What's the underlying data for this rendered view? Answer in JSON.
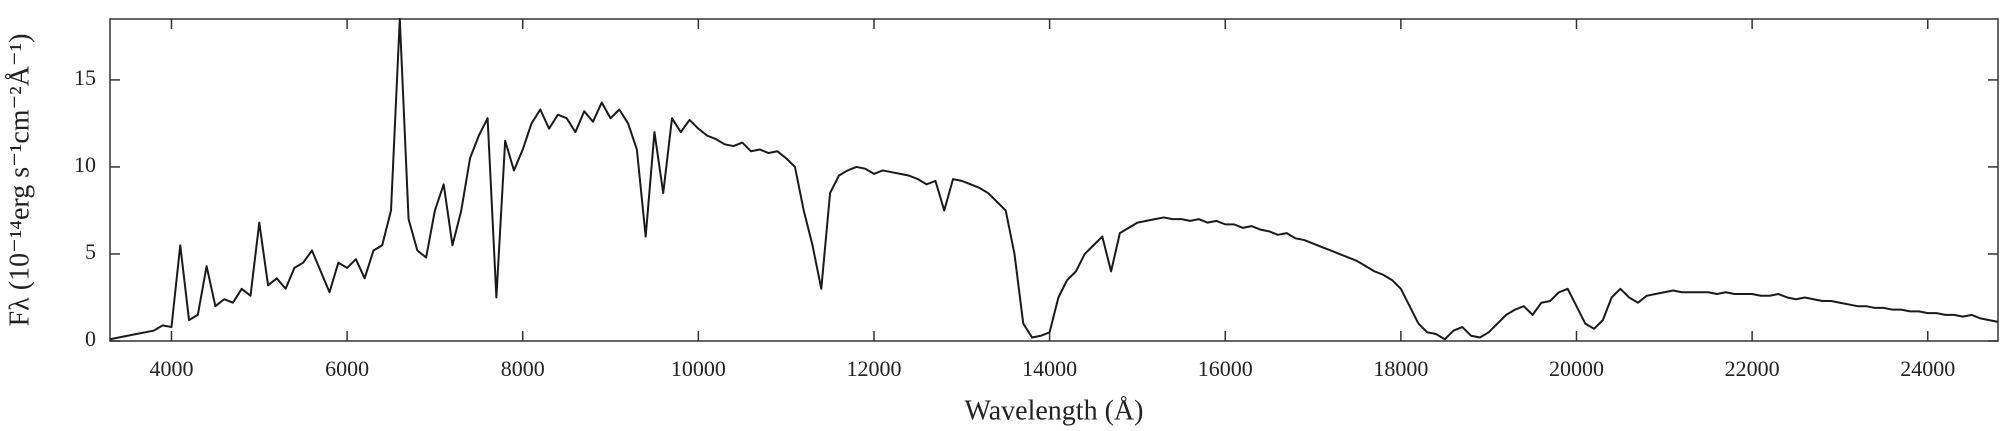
{
  "chart_data": {
    "type": "line",
    "x_label": "Wavelength (Å)",
    "y_label": "Fλ (10⁻¹⁴erg s⁻¹cm⁻²Å⁻¹)",
    "color": "#1a1a1a",
    "xlim": [
      3300,
      24800
    ],
    "ylim": [
      0,
      18.5
    ],
    "xticks": [
      4000,
      6000,
      8000,
      10000,
      12000,
      14000,
      16000,
      18000,
      20000,
      22000,
      24000
    ],
    "yticks": [
      0,
      5,
      10,
      15
    ],
    "x": [
      3300,
      3400,
      3500,
      3600,
      3700,
      3800,
      3900,
      4000,
      4100,
      4200,
      4300,
      4400,
      4500,
      4600,
      4700,
      4800,
      4900,
      5000,
      5100,
      5200,
      5300,
      5400,
      5500,
      5600,
      5700,
      5800,
      5900,
      6000,
      6100,
      6200,
      6300,
      6400,
      6500,
      6600,
      6700,
      6800,
      6900,
      7000,
      7100,
      7200,
      7300,
      7400,
      7500,
      7600,
      7700,
      7800,
      7900,
      8000,
      8100,
      8200,
      8300,
      8400,
      8500,
      8600,
      8700,
      8800,
      8900,
      9000,
      9100,
      9200,
      9300,
      9400,
      9500,
      9600,
      9700,
      9800,
      9900,
      10000,
      10100,
      10200,
      10300,
      10400,
      10500,
      10600,
      10700,
      10800,
      10900,
      11000,
      11100,
      11200,
      11300,
      11400,
      11500,
      11600,
      11700,
      11800,
      11900,
      12000,
      12100,
      12200,
      12300,
      12400,
      12500,
      12600,
      12700,
      12800,
      12900,
      13000,
      13100,
      13200,
      13300,
      13400,
      13500,
      13600,
      13700,
      13800,
      13900,
      14000,
      14100,
      14200,
      14300,
      14400,
      14500,
      14600,
      14700,
      14800,
      14900,
      15000,
      15100,
      15200,
      15300,
      15400,
      15500,
      15600,
      15700,
      15800,
      15900,
      16000,
      16100,
      16200,
      16300,
      16400,
      16500,
      16600,
      16700,
      16800,
      16900,
      17000,
      17100,
      17200,
      17300,
      17400,
      17500,
      17600,
      17700,
      17800,
      17900,
      18000,
      18100,
      18200,
      18300,
      18400,
      18500,
      18600,
      18700,
      18800,
      18900,
      19000,
      19100,
      19200,
      19300,
      19400,
      19500,
      19600,
      19700,
      19800,
      19900,
      20000,
      20100,
      20200,
      20300,
      20400,
      20500,
      20600,
      20700,
      20800,
      20900,
      21000,
      21100,
      21200,
      21300,
      21400,
      21500,
      21600,
      21700,
      21800,
      21900,
      22000,
      22100,
      22200,
      22300,
      22400,
      22500,
      22600,
      22700,
      22800,
      22900,
      23000,
      23100,
      23200,
      23300,
      23400,
      23500,
      23600,
      23700,
      23800,
      23900,
      24000,
      24100,
      24200,
      24300,
      24400,
      24500,
      24600,
      24700,
      24800
    ],
    "values": [
      0.1,
      0.2,
      0.3,
      0.4,
      0.5,
      0.6,
      0.9,
      0.8,
      5.5,
      1.2,
      1.5,
      4.3,
      2.0,
      2.4,
      2.2,
      3.0,
      2.6,
      6.8,
      3.2,
      3.6,
      3.0,
      4.2,
      4.5,
      5.2,
      4.0,
      2.8,
      4.5,
      4.2,
      4.7,
      3.6,
      5.2,
      5.5,
      7.5,
      18.5,
      7.0,
      5.2,
      4.8,
      7.5,
      9.0,
      5.5,
      7.5,
      10.5,
      11.8,
      12.8,
      2.5,
      11.5,
      9.8,
      11.0,
      12.5,
      13.3,
      12.2,
      13.0,
      12.8,
      12.0,
      13.2,
      12.6,
      13.7,
      12.8,
      13.3,
      12.5,
      11.0,
      6.0,
      12.0,
      8.5,
      12.8,
      12.0,
      12.7,
      12.2,
      11.8,
      11.6,
      11.3,
      11.2,
      11.4,
      10.9,
      11.0,
      10.8,
      10.9,
      10.5,
      10.0,
      7.5,
      5.5,
      3.0,
      8.5,
      9.5,
      9.8,
      10.0,
      9.9,
      9.6,
      9.8,
      9.7,
      9.6,
      9.5,
      9.3,
      9.0,
      9.2,
      7.5,
      9.3,
      9.2,
      9.0,
      8.8,
      8.5,
      8.0,
      7.5,
      5.0,
      1.0,
      0.2,
      0.3,
      0.5,
      2.5,
      3.5,
      4.0,
      5.0,
      5.5,
      6.0,
      4.0,
      6.2,
      6.5,
      6.8,
      6.9,
      7.0,
      7.1,
      7.0,
      7.0,
      6.9,
      7.0,
      6.8,
      6.9,
      6.7,
      6.7,
      6.5,
      6.6,
      6.4,
      6.3,
      6.1,
      6.2,
      5.9,
      5.8,
      5.6,
      5.4,
      5.2,
      5.0,
      4.8,
      4.6,
      4.3,
      4.0,
      3.8,
      3.5,
      3.0,
      2.0,
      1.0,
      0.5,
      0.4,
      0.1,
      0.6,
      0.8,
      0.3,
      0.2,
      0.5,
      1.0,
      1.5,
      1.8,
      2.0,
      1.5,
      2.2,
      2.3,
      2.8,
      3.0,
      2.0,
      1.0,
      0.7,
      1.2,
      2.5,
      3.0,
      2.5,
      2.2,
      2.6,
      2.7,
      2.8,
      2.9,
      2.8,
      2.8,
      2.8,
      2.8,
      2.7,
      2.8,
      2.7,
      2.7,
      2.7,
      2.6,
      2.6,
      2.7,
      2.5,
      2.4,
      2.5,
      2.4,
      2.3,
      2.3,
      2.2,
      2.1,
      2.0,
      2.0,
      1.9,
      1.9,
      1.8,
      1.8,
      1.7,
      1.7,
      1.6,
      1.6,
      1.5,
      1.5,
      1.4,
      1.5,
      1.3,
      1.2,
      1.1
    ]
  }
}
